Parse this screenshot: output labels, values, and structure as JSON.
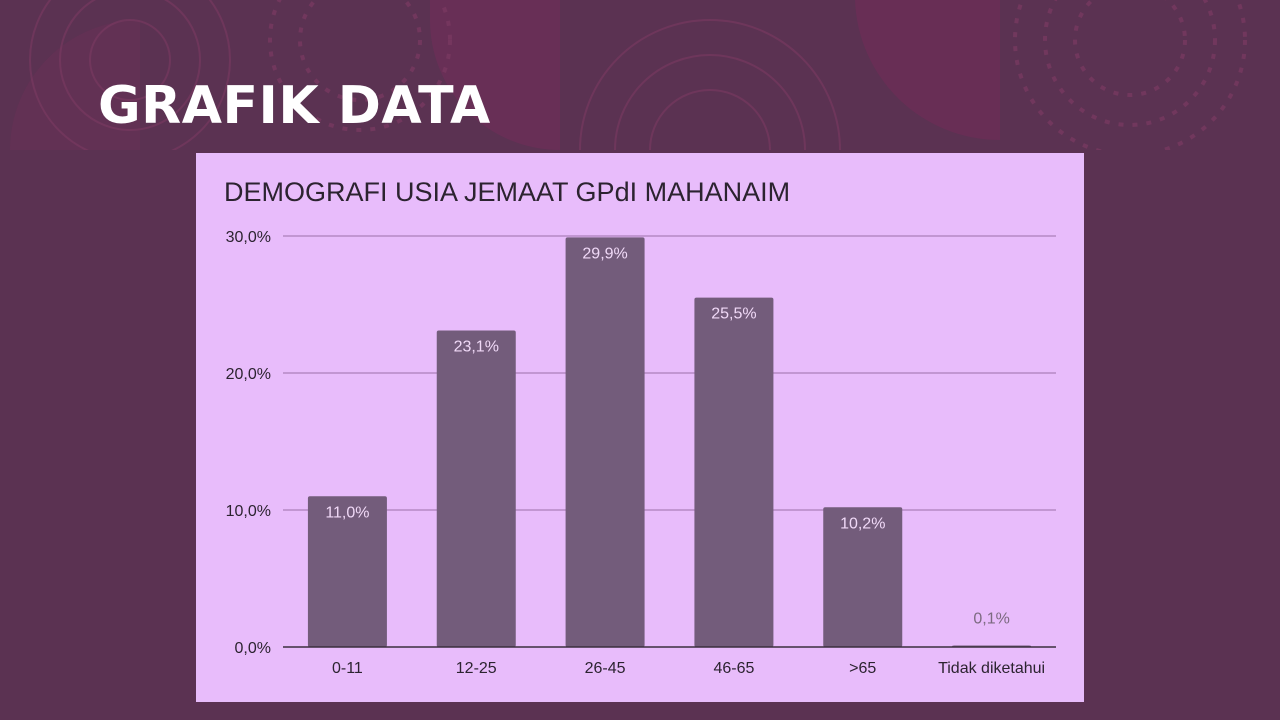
{
  "slide": {
    "title": "GRAFIK DATA",
    "background_color": "#5b3252",
    "card_color": "#e8bcfb"
  },
  "chart_data": {
    "type": "bar",
    "title": "DEMOGRAFI USIA JEMAAT GPdI MAHANAIM",
    "categories": [
      "0-11",
      "12-25",
      "26-45",
      "46-65",
      ">65",
      "Tidak diketahui"
    ],
    "values": [
      11.0,
      23.1,
      29.9,
      25.5,
      10.2,
      0.1
    ],
    "data_labels": [
      "11,0%",
      "23,1%",
      "29,9%",
      "25,5%",
      "10,2%",
      "0,1%"
    ],
    "xlabel": "",
    "ylabel": "",
    "ylim": [
      0,
      30
    ],
    "yticks": [
      0,
      10,
      20,
      30
    ],
    "ytick_labels": [
      "0,0%",
      "10,0%",
      "20,0%",
      "30,0%"
    ],
    "grid": true,
    "legend": "none",
    "bar_color": "#735c7b",
    "grid_color": "#b58ac4",
    "label_color_inside": "#f0d9f7",
    "label_color_outside": "#7c6a80"
  }
}
